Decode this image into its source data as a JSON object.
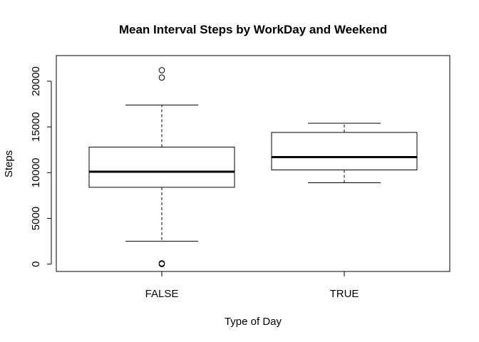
{
  "chart_data": {
    "type": "boxplot",
    "title": "Mean Interval Steps by WorkDay and Weekend",
    "xlabel": "Type of Day",
    "ylabel": "Steps",
    "categories": [
      "FALSE",
      "TRUE"
    ],
    "boxes": [
      {
        "category": "FALSE",
        "whisker_low": 2500,
        "q1": 8400,
        "median": 10100,
        "q3": 12800,
        "whisker_high": 17400,
        "outliers": [
          0,
          100,
          20400,
          21200
        ]
      },
      {
        "category": "TRUE",
        "whisker_low": 8900,
        "q1": 10300,
        "median": 11700,
        "q3": 14400,
        "whisker_high": 15400,
        "outliers": []
      }
    ],
    "yticks": [
      0,
      5000,
      10000,
      15000,
      20000
    ],
    "ylim": [
      -800,
      22800
    ],
    "grid": false,
    "legend": "none"
  }
}
